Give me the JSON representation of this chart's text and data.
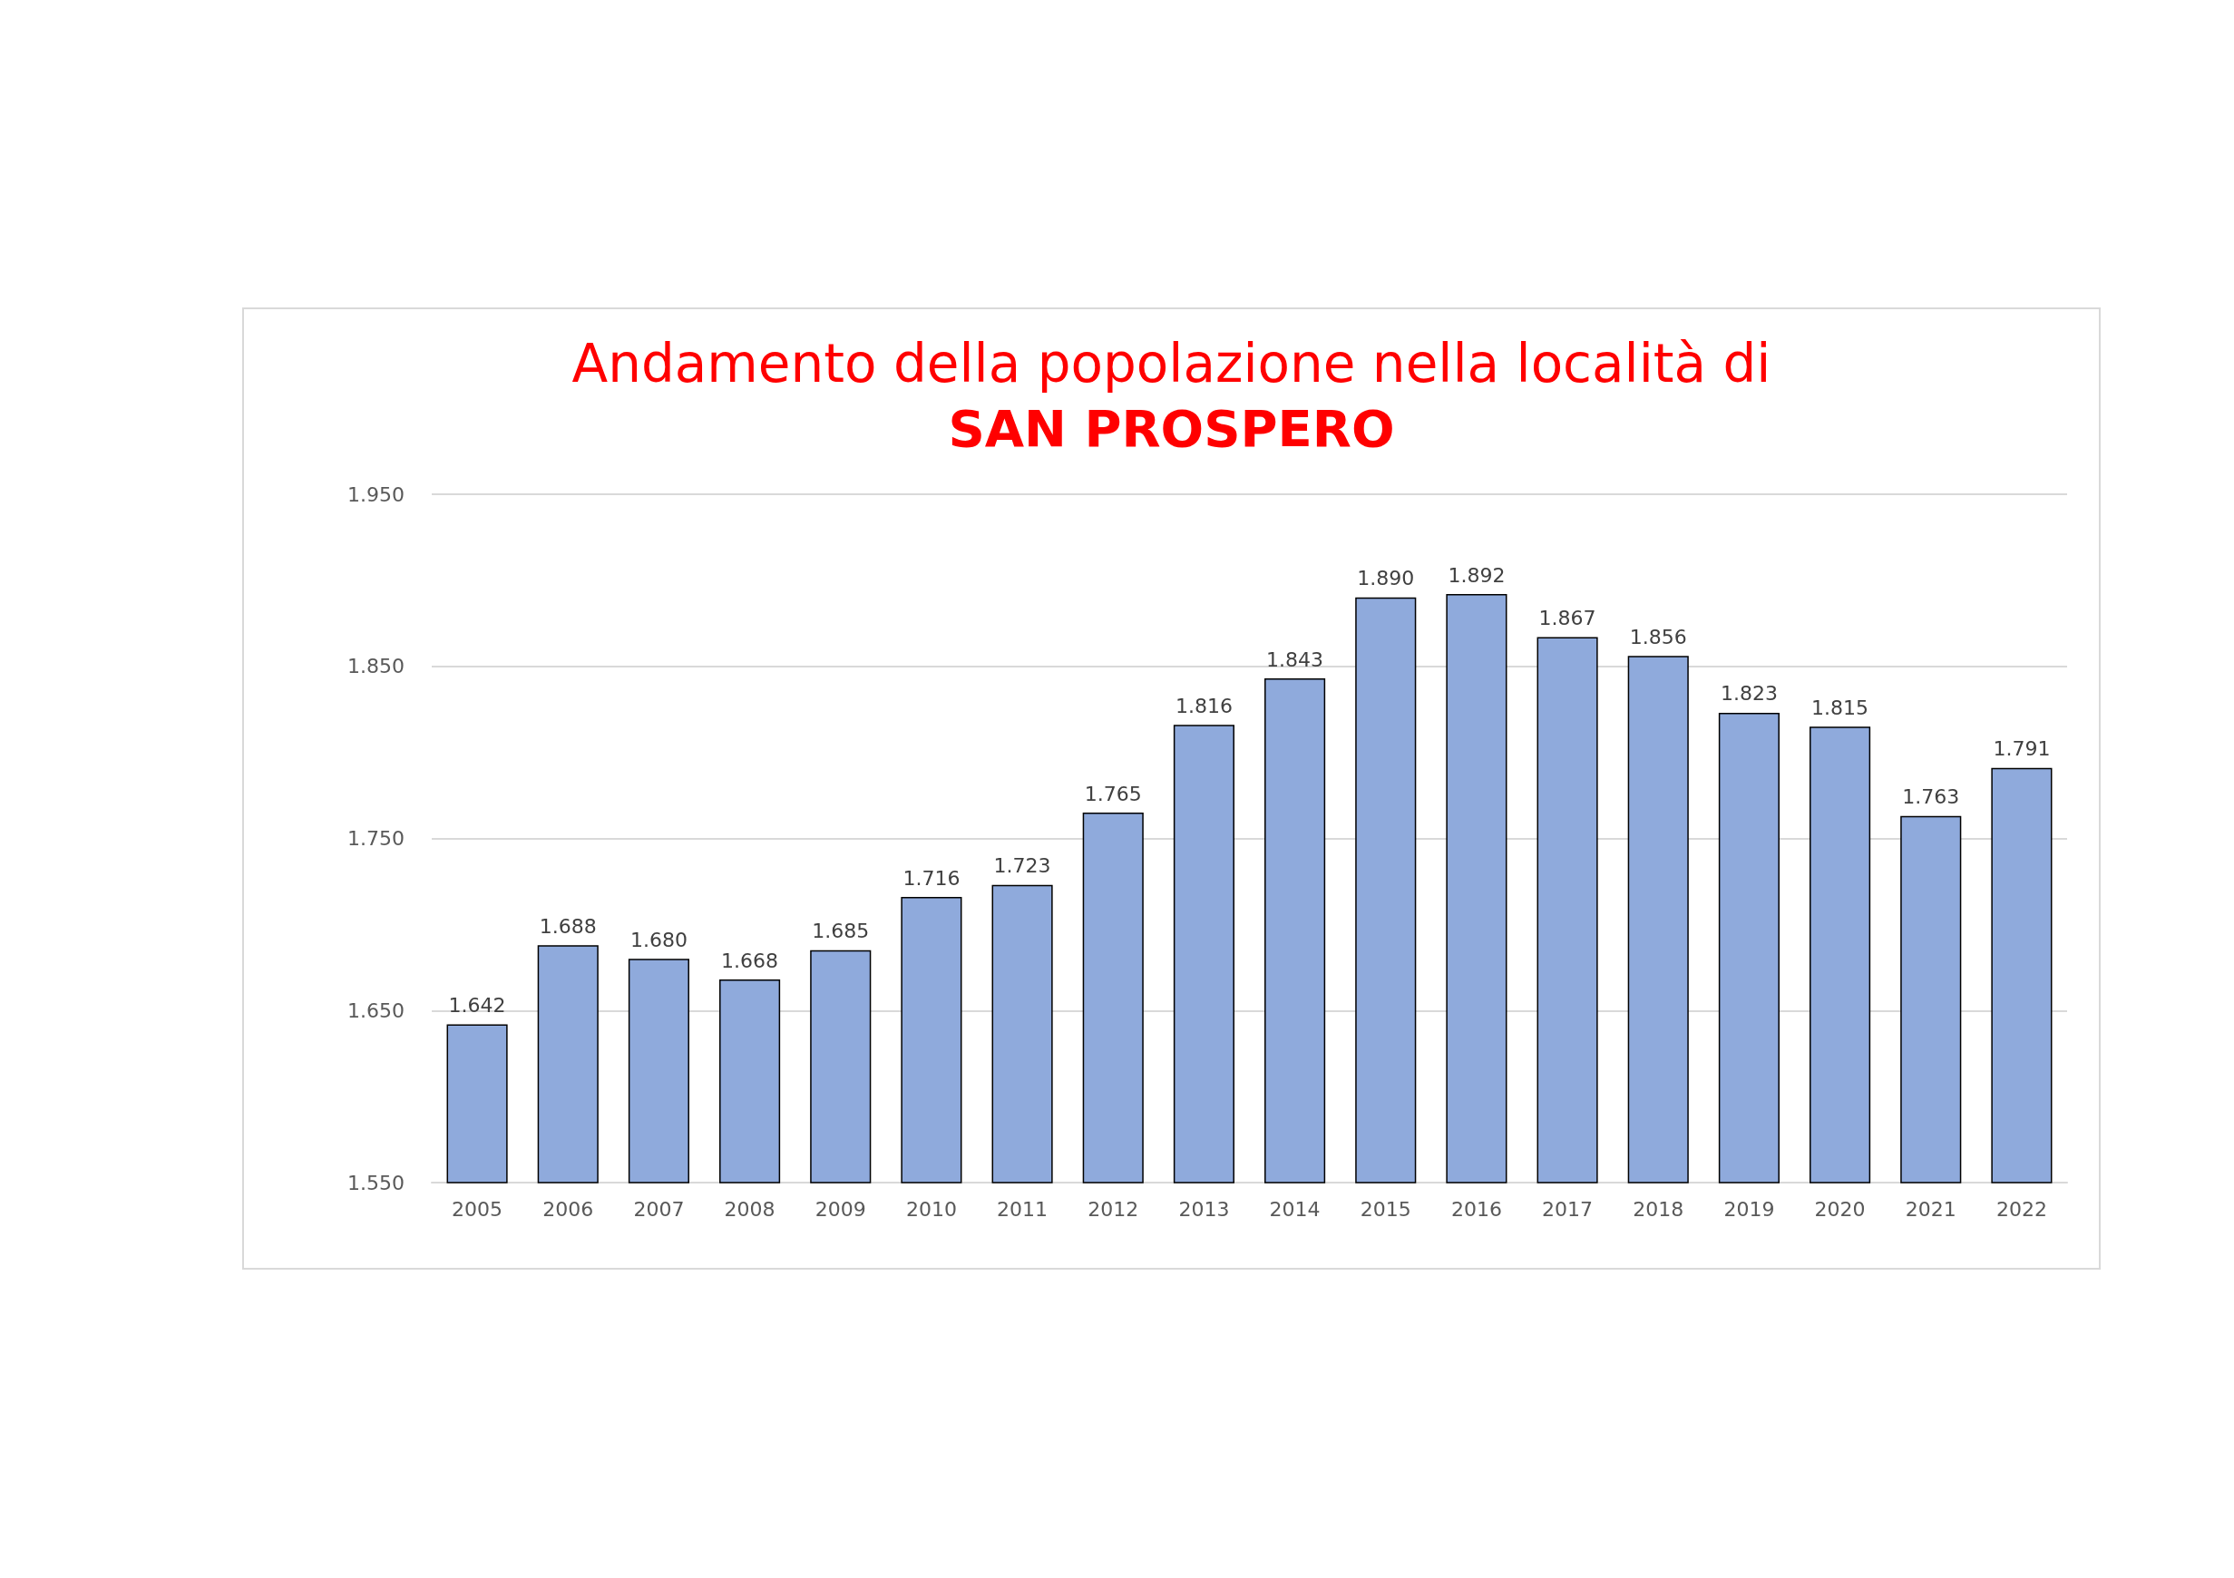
{
  "chart_data": {
    "type": "bar",
    "title": "Andamento della popolazione nella località di",
    "subtitle": "SAN PROSPERO",
    "categories": [
      "2005",
      "2006",
      "2007",
      "2008",
      "2009",
      "2010",
      "2011",
      "2012",
      "2013",
      "2014",
      "2015",
      "2016",
      "2017",
      "2018",
      "2019",
      "2020",
      "2021",
      "2022"
    ],
    "values": [
      1642,
      1688,
      1680,
      1668,
      1685,
      1716,
      1723,
      1765,
      1816,
      1843,
      1890,
      1892,
      1867,
      1856,
      1823,
      1815,
      1763,
      1791
    ],
    "value_labels": [
      "1.642",
      "1.688",
      "1.680",
      "1.668",
      "1.685",
      "1.716",
      "1.723",
      "1.765",
      "1.816",
      "1.843",
      "1.890",
      "1.892",
      "1.867",
      "1.856",
      "1.823",
      "1.815",
      "1.763",
      "1.791"
    ],
    "color": "#8faadc",
    "ylim": [
      1550,
      1950
    ],
    "yticks": [
      {
        "value": 1550,
        "label": "1.550"
      },
      {
        "value": 1650,
        "label": "1.650"
      },
      {
        "value": 1750,
        "label": "1.750"
      },
      {
        "value": 1850,
        "label": "1.850"
      },
      {
        "value": 1950,
        "label": "1.950"
      }
    ],
    "grid": "y"
  }
}
